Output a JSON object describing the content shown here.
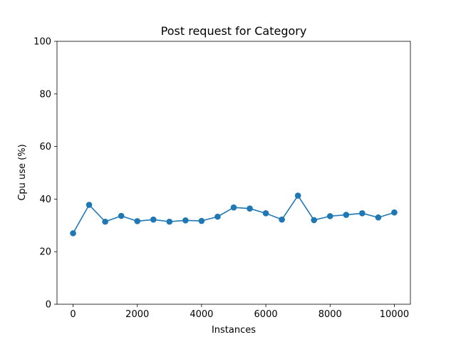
{
  "chart_data": {
    "type": "line",
    "title": "Post request for Category",
    "xlabel": "Instances",
    "ylabel": "Cpu use (%)",
    "xlim": [
      -500,
      10500
    ],
    "ylim": [
      0,
      100
    ],
    "xticks": [
      0,
      2000,
      4000,
      6000,
      8000,
      10000
    ],
    "yticks": [
      0,
      20,
      40,
      60,
      80,
      100
    ],
    "grid": false,
    "markers": true,
    "series": [
      {
        "color": "#1f77b4",
        "x": [
          0,
          500,
          1000,
          1500,
          2000,
          2500,
          3000,
          3500,
          4000,
          4500,
          5000,
          5500,
          6000,
          6500,
          7000,
          7500,
          8000,
          8500,
          9000,
          9500,
          10000
        ],
        "y": [
          27.0,
          37.8,
          31.4,
          33.6,
          31.6,
          32.2,
          31.4,
          31.9,
          31.7,
          33.3,
          36.8,
          36.4,
          34.6,
          32.2,
          41.3,
          32.0,
          33.5,
          34.0,
          34.6,
          33.0,
          34.9
        ]
      }
    ]
  }
}
